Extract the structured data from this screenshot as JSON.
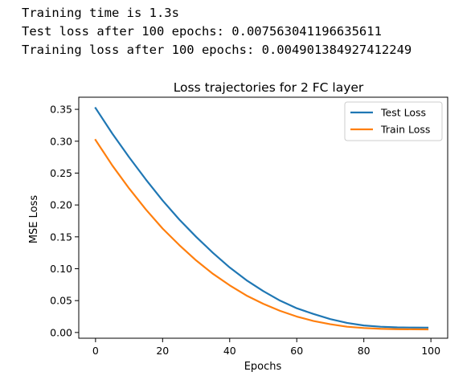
{
  "console_output": [
    "Training time is 1.3s",
    "Test loss after 100 epochs: 0.007563041196635611",
    "Training loss after 100 epochs: 0.004901384927412249"
  ],
  "chart_data": {
    "type": "line",
    "title": "Loss trajectories for 2 FC layer",
    "xlabel": "Epochs",
    "ylabel": "MSE Loss",
    "xlim": [
      -5,
      105
    ],
    "ylim": [
      -0.009,
      0.369
    ],
    "xticks": [
      0,
      20,
      40,
      60,
      80,
      100
    ],
    "yticks": [
      0.0,
      0.05,
      0.1,
      0.15,
      0.2,
      0.25,
      0.3,
      0.35
    ],
    "grid": false,
    "legend_position": "top-right",
    "x": [
      0,
      5,
      10,
      15,
      20,
      25,
      30,
      35,
      40,
      45,
      50,
      55,
      60,
      65,
      70,
      75,
      80,
      85,
      90,
      95,
      99
    ],
    "series": [
      {
        "name": "Test Loss",
        "color": "#1f77b4",
        "values": [
          0.352,
          0.312,
          0.275,
          0.24,
          0.207,
          0.177,
          0.15,
          0.125,
          0.102,
          0.082,
          0.065,
          0.05,
          0.038,
          0.029,
          0.021,
          0.015,
          0.011,
          0.009,
          0.008,
          0.0077,
          0.0076
        ]
      },
      {
        "name": "Train Loss",
        "color": "#ff7f0e",
        "values": [
          0.302,
          0.262,
          0.226,
          0.193,
          0.163,
          0.137,
          0.113,
          0.092,
          0.074,
          0.058,
          0.045,
          0.034,
          0.025,
          0.018,
          0.013,
          0.009,
          0.007,
          0.0058,
          0.0052,
          0.005,
          0.0049
        ]
      }
    ]
  }
}
